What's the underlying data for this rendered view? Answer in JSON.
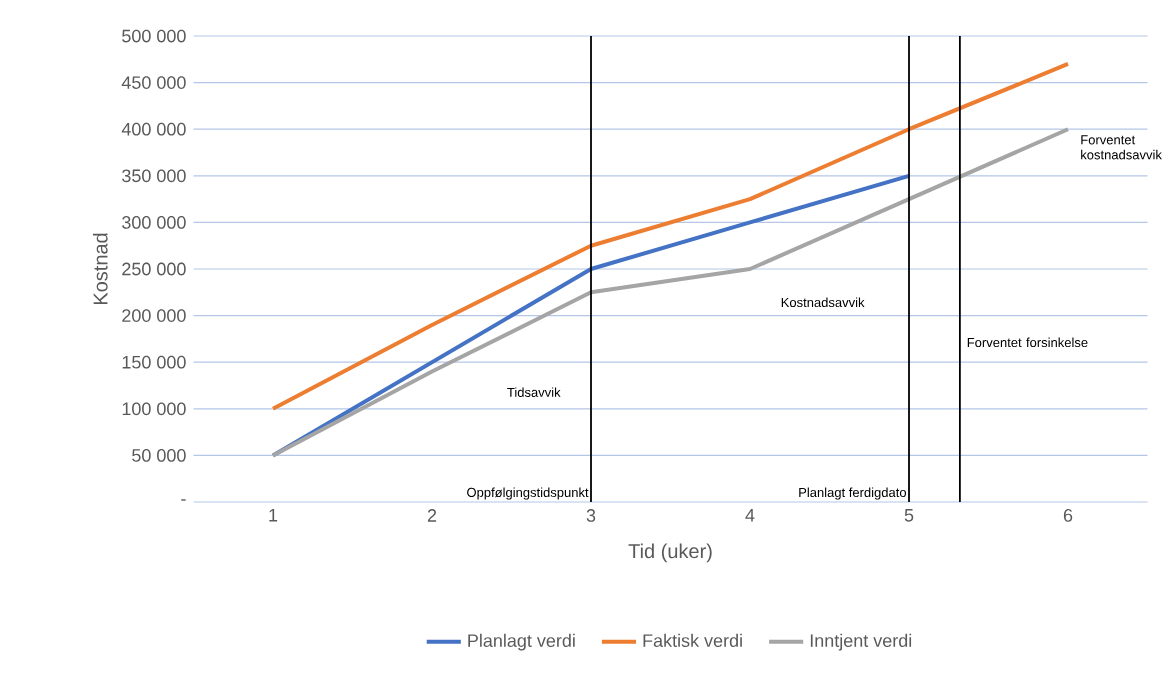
{
  "chart_data": {
    "type": "line",
    "xlabel": "Tid (uker)",
    "ylabel": "Kostnad",
    "x": [
      1,
      2,
      3,
      4,
      5,
      6
    ],
    "xlim": [
      0.5,
      6.5
    ],
    "xticks": [
      1,
      2,
      3,
      4,
      5,
      6
    ],
    "ylim": [
      0,
      500000
    ],
    "yticks": [
      {
        "value": 0,
        "label": "-"
      },
      {
        "value": 50000,
        "label": "50 000"
      },
      {
        "value": 100000,
        "label": "100 000"
      },
      {
        "value": 150000,
        "label": "150 000"
      },
      {
        "value": 200000,
        "label": "200 000"
      },
      {
        "value": 250000,
        "label": "250 000"
      },
      {
        "value": 300000,
        "label": "300 000"
      },
      {
        "value": 350000,
        "label": "350 000"
      },
      {
        "value": 400000,
        "label": "400 000"
      },
      {
        "value": 450000,
        "label": "450 000"
      },
      {
        "value": 500000,
        "label": "500 000"
      }
    ],
    "series": [
      {
        "name": "Planlagt verdi",
        "color": "#4472c4",
        "values": [
          50000,
          150000,
          250000,
          300000,
          350000,
          null
        ]
      },
      {
        "name": "Faktisk verdi",
        "color": "#ed7d31",
        "values": [
          100000,
          190000,
          275000,
          325000,
          400000,
          470000
        ]
      },
      {
        "name": "Inntjent verdi",
        "color": "#a5a5a5",
        "values": [
          50000,
          140000,
          225000,
          250000,
          325000,
          400000
        ]
      }
    ],
    "ref_lines": [
      {
        "axis": "x",
        "value": 3,
        "label": "Oppfølgingstidspunkt",
        "color": "#000000"
      },
      {
        "axis": "x",
        "value": 5,
        "label": "Planlagt ferdigdato",
        "color": "#000000"
      },
      {
        "axis": "x",
        "value": 5.32,
        "color": "#000000"
      }
    ],
    "annotations": [
      "Tidsavvik",
      "Kostnadsavvik",
      "Forventet forsinkelse",
      "Forventet kostnadsavvik"
    ],
    "grid": "y",
    "legend": "bottom"
  }
}
